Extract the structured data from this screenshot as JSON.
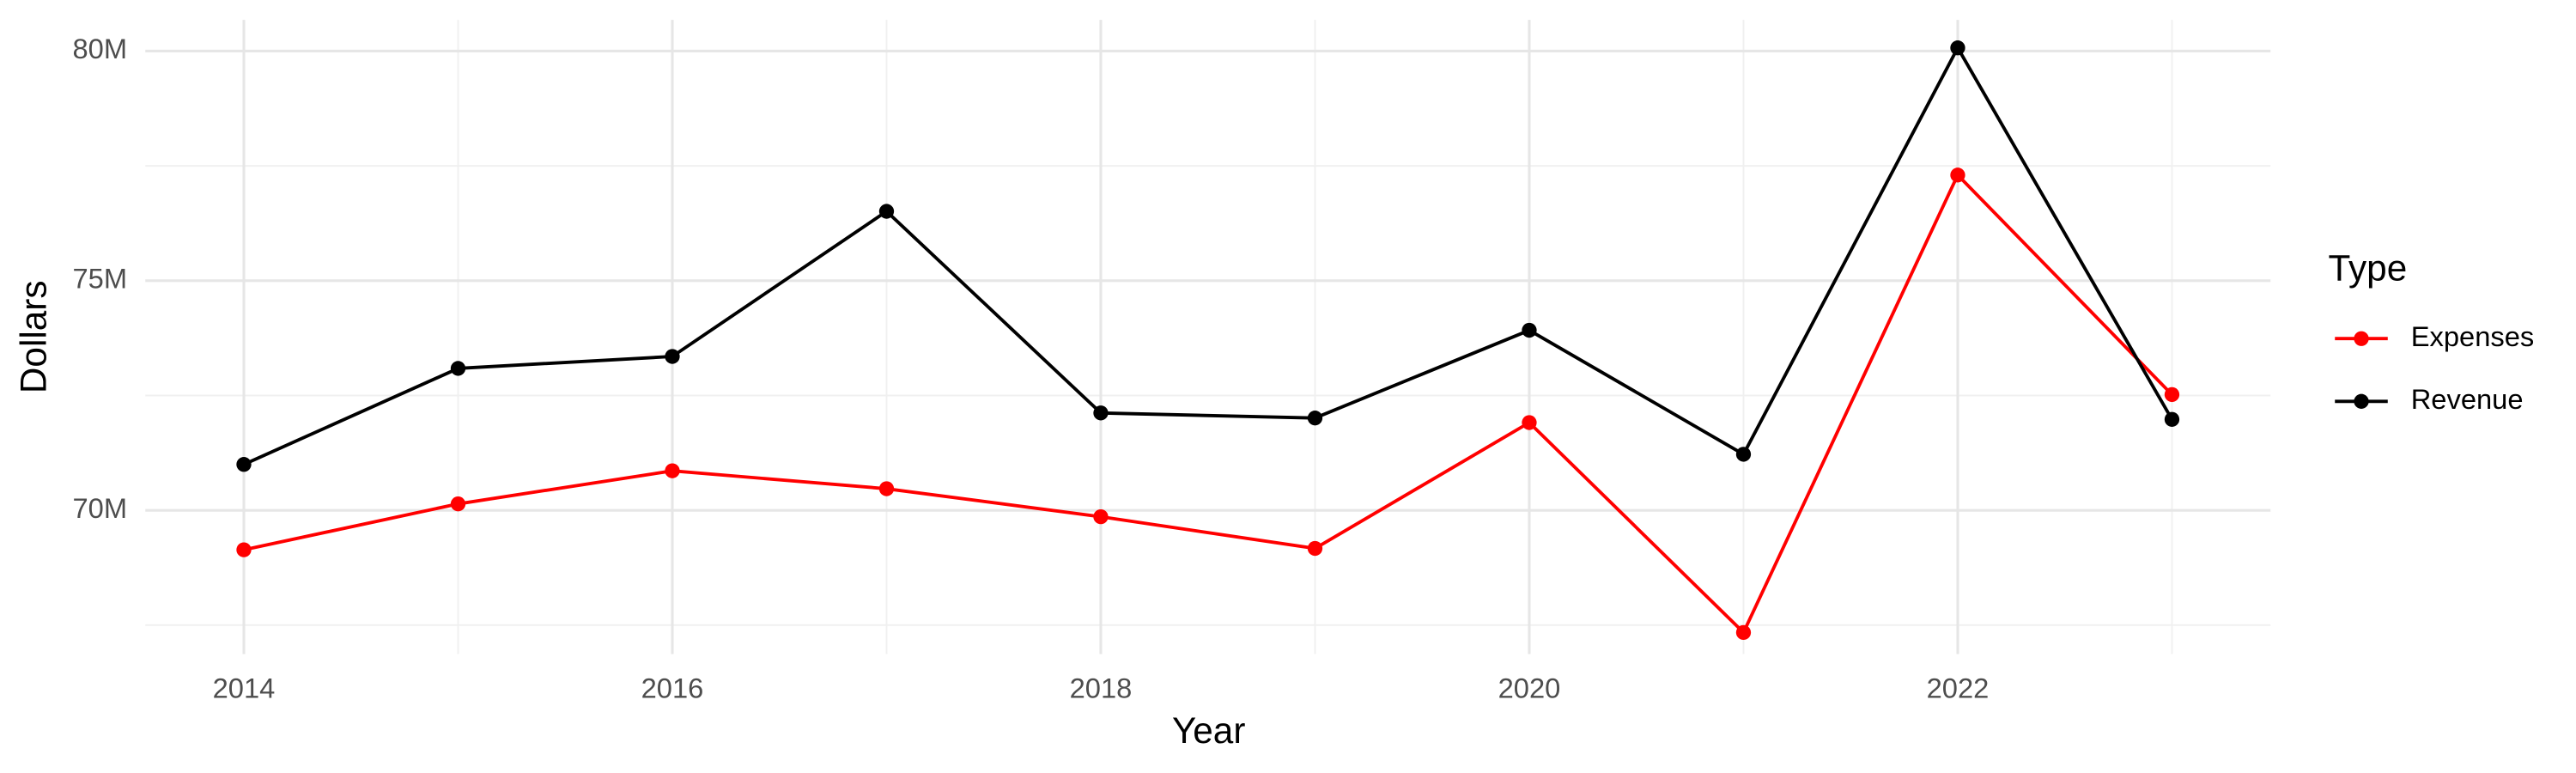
{
  "chart_data": {
    "type": "line",
    "x_label": "Year",
    "y_label": "Dollars",
    "legend_title": "Type",
    "legend_position": "right",
    "grid": true,
    "x": [
      2014,
      2015,
      2016,
      2017,
      2018,
      2019,
      2020,
      2021,
      2022,
      2023
    ],
    "series": [
      {
        "name": "Expenses",
        "color": "#ff0000",
        "values": [
          69140000,
          70140000,
          70860000,
          70470000,
          69860000,
          69170000,
          71910000,
          67340000,
          77300000,
          72520000
        ]
      },
      {
        "name": "Revenue",
        "color": "#000000",
        "values": [
          71000000,
          73090000,
          73350000,
          76510000,
          72120000,
          72010000,
          73920000,
          71220000,
          80070000,
          71980000
        ]
      }
    ],
    "xlim": [
      2013.54,
      2023.46
    ],
    "xticks": [
      2014,
      2016,
      2018,
      2020,
      2022
    ],
    "ylim": [
      66870000,
      80680000
    ],
    "yticks": [
      {
        "value": 70000000,
        "label": "70M"
      },
      {
        "value": 75000000,
        "label": "75M"
      },
      {
        "value": 80000000,
        "label": "80M"
      }
    ]
  }
}
